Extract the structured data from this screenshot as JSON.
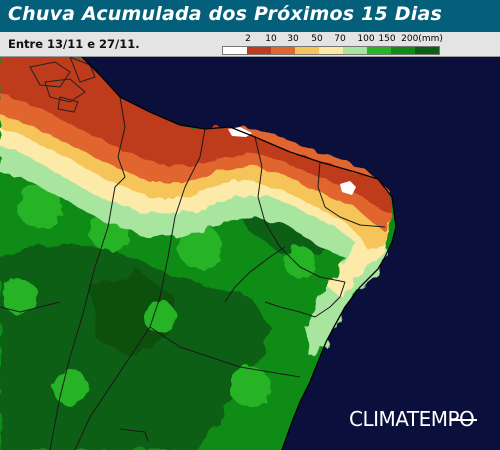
{
  "header": {
    "title": "Chuva Acumulada dos Próximos 15 Dias",
    "period": "Entre 13/11 e 27/11."
  },
  "legend": {
    "labels": [
      "2",
      "10",
      "30",
      "50",
      "70",
      "100",
      "150",
      "200(mm)"
    ],
    "colors": [
      "#ffffff",
      "#be3b1e",
      "#e0652f",
      "#f6c55a",
      "#fbeaa8",
      "#a8e6a0",
      "#28b428",
      "#0e8c16",
      "#0a5f12"
    ]
  },
  "map": {
    "ocean_color": "#0b0f3c",
    "land_color_wet": "#0e8c16",
    "land_color_dry": "#be3b1e"
  },
  "branding": {
    "logo_text": "CLIMATEMPO"
  }
}
